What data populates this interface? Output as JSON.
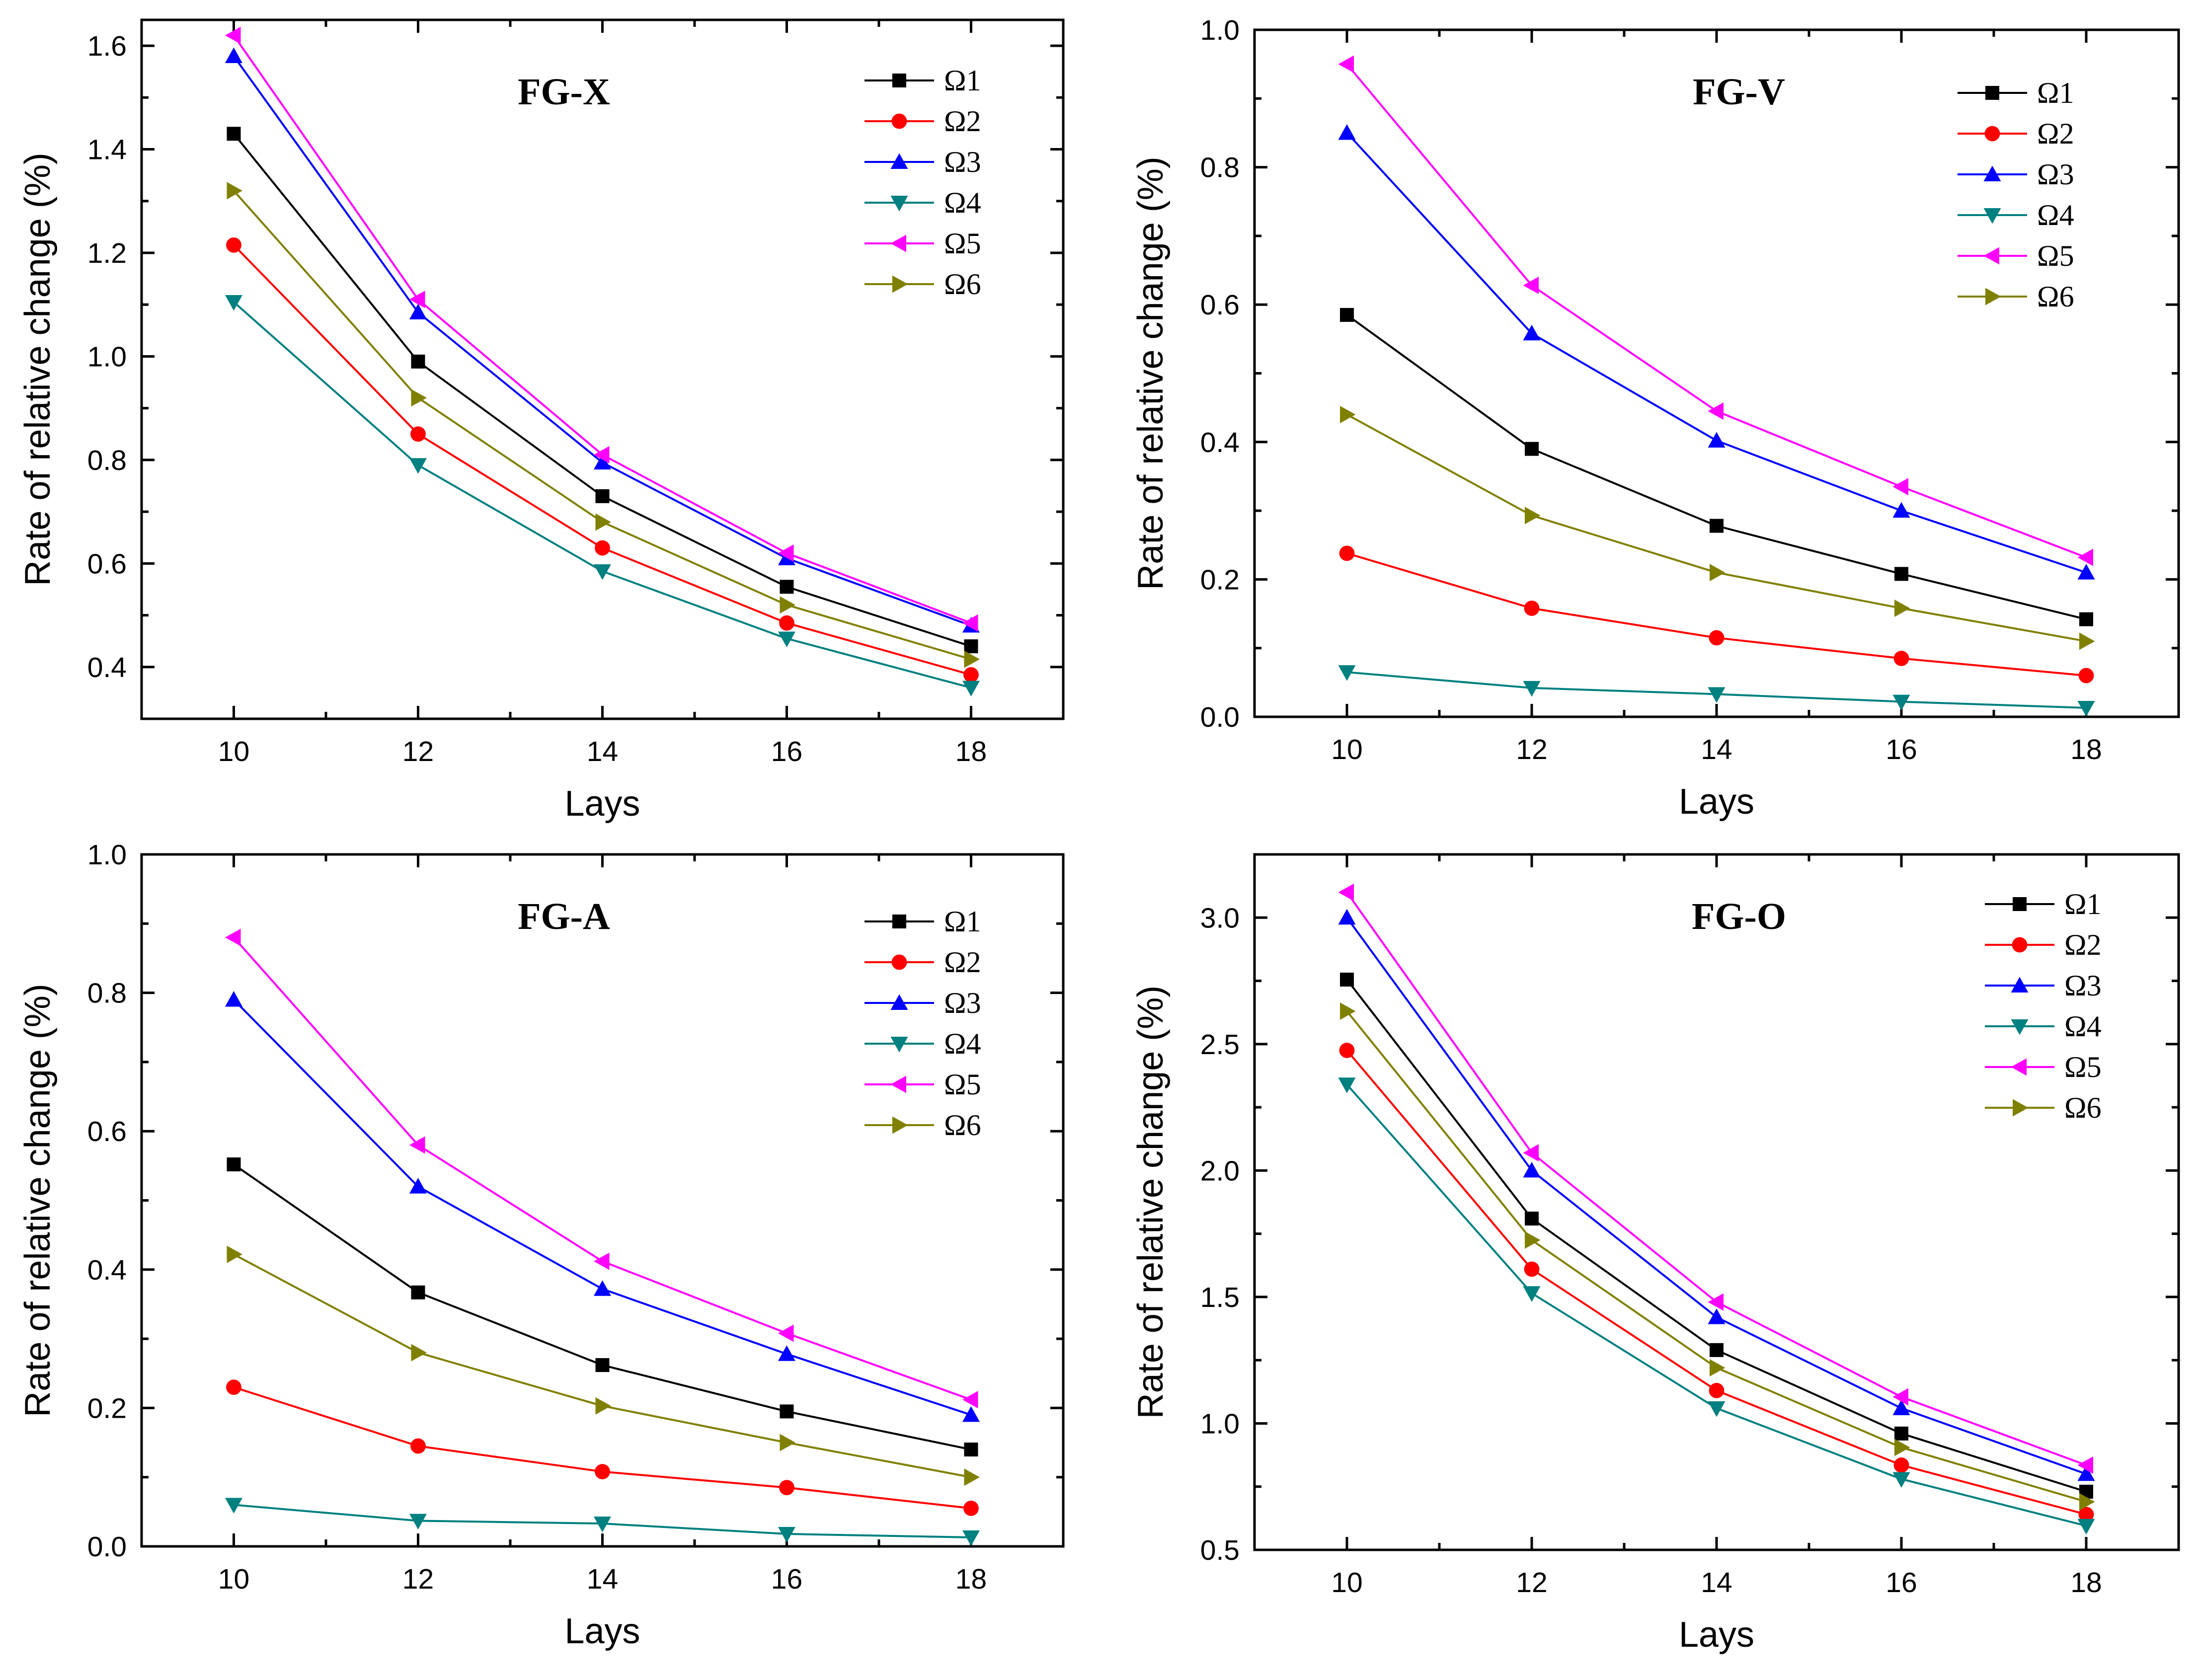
{
  "chart_data": [
    {
      "type": "line",
      "title": "FG-X",
      "xlabel": "Lays",
      "ylabel": "Rate of relative change (%)",
      "x": [
        10,
        12,
        14,
        16,
        18
      ],
      "xticks": [
        "10",
        "12",
        "14",
        "16",
        "18"
      ],
      "xlim": [
        9,
        19
      ],
      "ylim": [
        0.3,
        1.65
      ],
      "yticks": [
        "0.4",
        "0.6",
        "0.8",
        "1.0",
        "1.2",
        "1.4",
        "1.6"
      ],
      "ytick_values": [
        0.4,
        0.6,
        0.8,
        1.0,
        1.2,
        1.4,
        1.6
      ],
      "legend": "top-right",
      "series": [
        {
          "name": "Ω1",
          "values": [
            1.43,
            0.99,
            0.73,
            0.555,
            0.44
          ]
        },
        {
          "name": "Ω2",
          "values": [
            1.215,
            0.85,
            0.63,
            0.485,
            0.385
          ]
        },
        {
          "name": "Ω3",
          "values": [
            1.58,
            1.085,
            0.795,
            0.61,
            0.48
          ]
        },
        {
          "name": "Ω4",
          "values": [
            1.105,
            0.79,
            0.585,
            0.455,
            0.36
          ]
        },
        {
          "name": "Ω5",
          "values": [
            1.62,
            1.11,
            0.81,
            0.62,
            0.485
          ]
        },
        {
          "name": "Ω6",
          "values": [
            1.32,
            0.92,
            0.68,
            0.52,
            0.415
          ]
        }
      ]
    },
    {
      "type": "line",
      "title": "FG-V",
      "xlabel": "Lays",
      "ylabel": "Rate of relative change (%)",
      "x": [
        10,
        12,
        14,
        16,
        18
      ],
      "xticks": [
        "10",
        "12",
        "14",
        "16",
        "18"
      ],
      "xlim": [
        9,
        19
      ],
      "ylim": [
        0,
        1.0
      ],
      "yticks": [
        "0.0",
        "0.2",
        "0.4",
        "0.6",
        "0.8",
        "1.0"
      ],
      "ytick_values": [
        0,
        0.2,
        0.4,
        0.6,
        0.8,
        1.0
      ],
      "legend": "top-right",
      "series": [
        {
          "name": "Ω1",
          "values": [
            0.585,
            0.39,
            0.278,
            0.208,
            0.142
          ]
        },
        {
          "name": "Ω2",
          "values": [
            0.238,
            0.158,
            0.115,
            0.085,
            0.06
          ]
        },
        {
          "name": "Ω3",
          "values": [
            0.85,
            0.558,
            0.402,
            0.3,
            0.21
          ]
        },
        {
          "name": "Ω4",
          "values": [
            0.065,
            0.042,
            0.033,
            0.022,
            0.013
          ]
        },
        {
          "name": "Ω5",
          "values": [
            0.95,
            0.628,
            0.445,
            0.335,
            0.232
          ]
        },
        {
          "name": "Ω6",
          "values": [
            0.44,
            0.293,
            0.21,
            0.158,
            0.11
          ]
        }
      ]
    },
    {
      "type": "line",
      "title": "FG-A",
      "xlabel": "Lays",
      "ylabel": "Rate of relative change (%)",
      "x": [
        10,
        12,
        14,
        16,
        18
      ],
      "xticks": [
        "10",
        "12",
        "14",
        "16",
        "18"
      ],
      "xlim": [
        9,
        19
      ],
      "ylim": [
        0,
        1.0
      ],
      "yticks": [
        "0.0",
        "0.2",
        "0.4",
        "0.6",
        "0.8",
        "1.0"
      ],
      "ytick_values": [
        0,
        0.2,
        0.4,
        0.6,
        0.8,
        1.0
      ],
      "legend": "top-right",
      "series": [
        {
          "name": "Ω1",
          "values": [
            0.552,
            0.367,
            0.262,
            0.195,
            0.14
          ]
        },
        {
          "name": "Ω2",
          "values": [
            0.23,
            0.145,
            0.108,
            0.085,
            0.055
          ]
        },
        {
          "name": "Ω3",
          "values": [
            0.79,
            0.52,
            0.372,
            0.278,
            0.19
          ]
        },
        {
          "name": "Ω4",
          "values": [
            0.06,
            0.037,
            0.033,
            0.018,
            0.013
          ]
        },
        {
          "name": "Ω5",
          "values": [
            0.88,
            0.58,
            0.412,
            0.308,
            0.212
          ]
        },
        {
          "name": "Ω6",
          "values": [
            0.422,
            0.28,
            0.203,
            0.15,
            0.1
          ]
        }
      ]
    },
    {
      "type": "line",
      "title": "FG-O",
      "xlabel": "Lays",
      "ylabel": "Rate of relative change (%)",
      "x": [
        10,
        12,
        14,
        16,
        18
      ],
      "xticks": [
        "10",
        "12",
        "14",
        "16",
        "18"
      ],
      "xlim": [
        9,
        19
      ],
      "ylim": [
        0.5,
        3.25
      ],
      "yticks": [
        "0.5",
        "1.0",
        "1.5",
        "2.0",
        "2.5",
        "3.0"
      ],
      "ytick_values": [
        0.5,
        1.0,
        1.5,
        2.0,
        2.5,
        3.0
      ],
      "legend": "top-right",
      "series": [
        {
          "name": "Ω1",
          "values": [
            2.755,
            1.81,
            1.29,
            0.96,
            0.73
          ]
        },
        {
          "name": "Ω2",
          "values": [
            2.475,
            1.61,
            1.13,
            0.835,
            0.64
          ]
        },
        {
          "name": "Ω3",
          "values": [
            3.0,
            2.0,
            1.42,
            1.06,
            0.8
          ]
        },
        {
          "name": "Ω4",
          "values": [
            2.34,
            1.515,
            1.06,
            0.78,
            0.595
          ]
        },
        {
          "name": "Ω5",
          "values": [
            3.1,
            2.07,
            1.48,
            1.105,
            0.835
          ]
        },
        {
          "name": "Ω6",
          "values": [
            2.63,
            1.725,
            1.22,
            0.905,
            0.69
          ]
        }
      ]
    }
  ],
  "series_style": [
    {
      "color": "#000000",
      "marker": "square"
    },
    {
      "color": "#ff0000",
      "marker": "circle"
    },
    {
      "color": "#0000ff",
      "marker": "triangle-up"
    },
    {
      "color": "#008080",
      "marker": "triangle-down"
    },
    {
      "color": "#ff00ff",
      "marker": "triangle-left"
    },
    {
      "color": "#808000",
      "marker": "triangle-right"
    }
  ]
}
